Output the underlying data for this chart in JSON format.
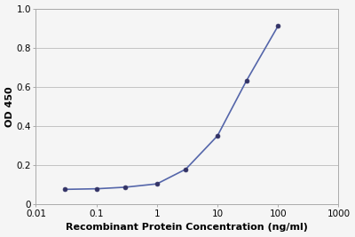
{
  "x_values": [
    0.03,
    0.1,
    0.3,
    1.0,
    3.0,
    10.0,
    30.0,
    100.0
  ],
  "y_values": [
    0.077,
    0.08,
    0.088,
    0.105,
    0.18,
    0.35,
    0.63,
    0.91
  ],
  "line_color": "#5566aa",
  "marker_color": "#333366",
  "marker_size": 3.5,
  "line_width": 1.2,
  "xlabel": "Recombinant Protein Concentration (ng/ml)",
  "ylabel": "OD 450",
  "xlim": [
    0.01,
    1000
  ],
  "ylim": [
    0,
    1.0
  ],
  "yticks": [
    0,
    0.2,
    0.4,
    0.6,
    0.8,
    1.0
  ],
  "xticks": [
    0.01,
    0.1,
    1,
    10,
    100,
    1000
  ],
  "xtick_labels": [
    "0.01",
    "0.1",
    "1",
    "10",
    "100",
    "1000"
  ],
  "xlabel_fontsize": 8,
  "ylabel_fontsize": 8,
  "tick_fontsize": 7.5,
  "background_color": "#f5f5f5",
  "grid_color": "#bbbbbb",
  "spine_color": "#aaaaaa"
}
